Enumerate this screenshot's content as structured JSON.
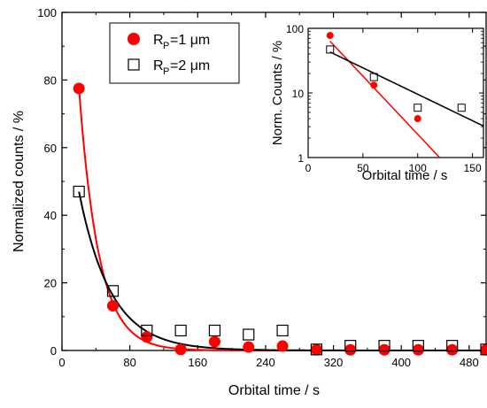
{
  "chart_data": [
    {
      "type": "scatter",
      "xlabel": "Orbital time / s",
      "ylabel": "Normalized counts / %",
      "xlim": [
        0,
        500
      ],
      "ylim": [
        0,
        100
      ],
      "xticks": [
        "0",
        "80",
        "160",
        "240",
        "320",
        "400",
        "480"
      ],
      "yticks": [
        "0",
        "20",
        "40",
        "60",
        "80",
        "100"
      ],
      "legend_position": "top-left",
      "series": [
        {
          "name": "RP=1 μm",
          "legend_main": "R",
          "legend_sub": "P",
          "legend_rest": "=1 μm",
          "marker": "filled-circle",
          "color": "#ff0000",
          "x": [
            20,
            60,
            100,
            140,
            180,
            220,
            260,
            300,
            340,
            380,
            420,
            460,
            500
          ],
          "y": [
            77.5,
            13.2,
            4.0,
            0.3,
            2.6,
            1.0,
            1.3,
            0.2,
            0.2,
            0.2,
            0.2,
            0.2,
            0.2
          ],
          "fit": {
            "a": 182.3,
            "k": 0.0427,
            "color": "#ff0000"
          }
        },
        {
          "name": "RP=2 μm",
          "legend_main": "R",
          "legend_sub": "P",
          "legend_rest": "=2 μm",
          "marker": "open-square",
          "color": "#000000",
          "x": [
            20,
            60,
            100,
            140,
            180,
            220,
            260,
            300,
            340,
            380,
            420,
            460,
            500
          ],
          "y": [
            47.0,
            17.6,
            5.9,
            5.9,
            5.9,
            4.7,
            5.9,
            0.3,
            1.4,
            1.4,
            1.4,
            1.4,
            0.3
          ],
          "fit": {
            "a": 79.8,
            "k": 0.0265,
            "color": "#000000"
          }
        }
      ]
    },
    {
      "type": "scatter",
      "xlabel": "Orbital time / s",
      "ylabel": "Norm. Counts / %",
      "yscale": "log",
      "xlim": [
        0,
        160
      ],
      "ylim": [
        1,
        100
      ],
      "xticks": [
        "0",
        "50",
        "100",
        "150"
      ],
      "yticks": [
        "1",
        "10",
        "100"
      ],
      "series": [
        {
          "name": "RP=1 μm",
          "marker": "filled-circle",
          "color": "#ff0000",
          "x": [
            20,
            60,
            100
          ],
          "y": [
            77.5,
            13.2,
            4.0
          ],
          "fit": {
            "x0": 20,
            "y0": 63,
            "x1": 120,
            "y1": 1.0
          }
        },
        {
          "name": "RP=2 μm",
          "marker": "open-square",
          "color": "#000000",
          "x": [
            20,
            60,
            100,
            140
          ],
          "y": [
            47.0,
            17.6,
            5.9,
            5.9
          ],
          "fit": {
            "x0": 20,
            "y0": 43,
            "x1": 165,
            "y1": 2.8
          }
        }
      ]
    }
  ]
}
